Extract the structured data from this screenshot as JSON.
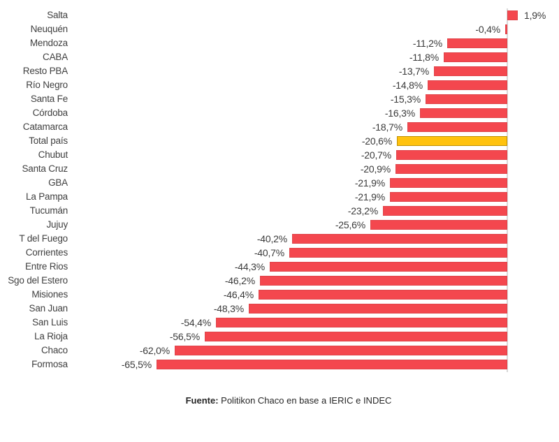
{
  "chart_data": {
    "type": "bar",
    "orientation": "horizontal",
    "title": "",
    "xlabel": "",
    "ylabel": "",
    "unit": "%",
    "grid": false,
    "legend": "none",
    "xlim": [
      -70,
      6
    ],
    "categories": [
      "Salta",
      "Neuquén",
      "Mendoza",
      "CABA",
      "Resto PBA",
      "Río Negro",
      "Santa Fe",
      "Córdoba",
      "Catamarca",
      "Total país",
      "Chubut",
      "Santa Cruz",
      "GBA",
      "La Pampa",
      "Tucumán",
      "Jujuy",
      "T del Fuego",
      "Corrientes",
      "Entre Rios",
      "Sgo del Estero",
      "Misiones",
      "San Juan",
      "San Luis",
      "La Rioja",
      "Chaco",
      "Formosa"
    ],
    "values": [
      1.9,
      -0.4,
      -11.2,
      -11.8,
      -13.7,
      -14.8,
      -15.3,
      -16.3,
      -18.7,
      -20.6,
      -20.7,
      -20.9,
      -21.9,
      -21.9,
      -23.2,
      -25.6,
      -40.2,
      -40.7,
      -44.3,
      -46.2,
      -46.4,
      -48.3,
      -54.4,
      -56.5,
      -62.0,
      -65.5
    ],
    "value_labels": [
      "1,9%",
      "-0,4%",
      "-11,2%",
      "-11,8%",
      "-13,7%",
      "-14,8%",
      "-15,3%",
      "-16,3%",
      "-18,7%",
      "-20,6%",
      "-20,7%",
      "-20,9%",
      "-21,9%",
      "-21,9%",
      "-23,2%",
      "-25,6%",
      "-40,2%",
      "-40,7%",
      "-44,3%",
      "-46,2%",
      "-46,4%",
      "-48,3%",
      "-54,4%",
      "-56,5%",
      "-62,0%",
      "-65,5%"
    ],
    "highlight_category": "Total país",
    "colors": {
      "bar": "#F4474E",
      "highlight_fill": "#FFC20E",
      "highlight_border": "#BF9000",
      "axis_line": "#D9D9D9",
      "text": "#3A3A3A"
    }
  },
  "footer": {
    "source_prefix": "Fuente:",
    "source_rest": " Politikon Chaco en base a IERIC e INDEC"
  }
}
